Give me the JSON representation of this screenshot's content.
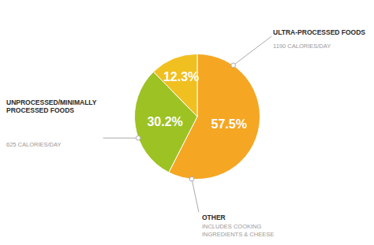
{
  "chart_data": {
    "type": "pie",
    "categories": [
      "ULTRA-PROCESSED FOODS",
      "UNPROCESSED/MINIMALLY\nPROCESSED FOODS",
      "OTHER"
    ],
    "values": [
      57.5,
      30.2,
      12.3
    ],
    "value_labels": [
      "57.5%",
      "30.2%",
      "12.3%"
    ],
    "data_labels": true,
    "colors": [
      "#F5A623",
      "#9DC224",
      "#F0C020"
    ],
    "annotations": [
      "1190 CALORIES/DAY",
      "625 CALORIES/DAY",
      "INCLUDES COOKING\nINGREDIENTS & CHEESE"
    ]
  }
}
